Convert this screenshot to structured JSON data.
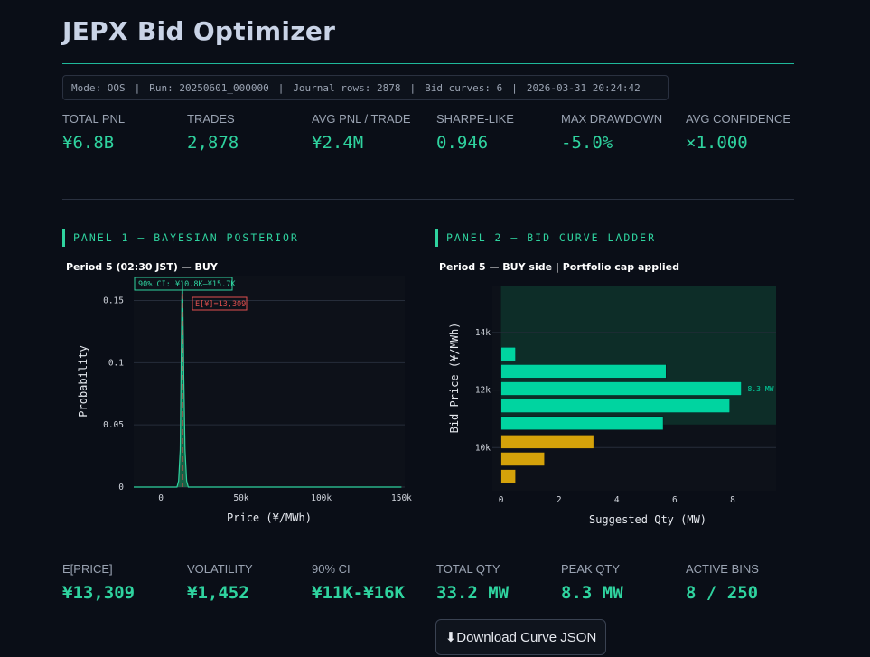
{
  "app": {
    "title": "JEPX Bid Optimizer"
  },
  "status": {
    "mode": "Mode: OOS",
    "run": "Run: 20250601_000000",
    "journal": "Journal rows: 2878",
    "curves": "Bid curves: 6",
    "timestamp": "2026-03-31 20:24:42",
    "separator": "|"
  },
  "summary_metrics": [
    {
      "label": "TOTAL PNL",
      "value": "¥6.8B"
    },
    {
      "label": "TRADES",
      "value": "2,878"
    },
    {
      "label": "AVG PNL / TRADE",
      "value": "¥2.4M"
    },
    {
      "label": "SHARPE-LIKE",
      "value": "0.946"
    },
    {
      "label": "MAX DRAWDOWN",
      "value": "-5.0%"
    },
    {
      "label": "AVG CONFIDENCE",
      "value": "×1.000"
    }
  ],
  "panel1": {
    "heading": "PANEL 1 — BAYESIAN POSTERIOR"
  },
  "panel2": {
    "heading": "PANEL 2 — BID CURVE LADDER"
  },
  "chart_data": [
    {
      "type": "area",
      "title": "Period 5 (02:30 JST) — BUY",
      "xlabel": "Price (¥/MWh)",
      "ylabel": "Probability",
      "xlim": [
        -17000,
        152000
      ],
      "ylim": [
        0,
        0.17
      ],
      "xticks": [
        0,
        50000,
        100000,
        150000
      ],
      "xtick_labels": [
        "0",
        "50k",
        "100k",
        "150k"
      ],
      "yticks": [
        0,
        0.05,
        0.1,
        0.15
      ],
      "ytick_labels": [
        "0",
        "0.05",
        "0.1",
        "0.15"
      ],
      "x": [
        -17000,
        10000,
        11000,
        12000,
        12500,
        13000,
        13309,
        13600,
        14200,
        15000,
        16000,
        17000,
        150000
      ],
      "y": [
        0,
        0,
        0.005,
        0.03,
        0.09,
        0.15,
        0.165,
        0.15,
        0.09,
        0.03,
        0.005,
        0,
        0
      ],
      "mean": 13309,
      "mean_label": "E[¥]=13,309",
      "ci": [
        10800,
        15700
      ],
      "ci_label": "90% CI: ¥10.8K–¥15.7K",
      "grid": true,
      "colors": {
        "fill": "#1a6e4e",
        "line": "#2fd39f",
        "mean": "#e04f4f",
        "ci": "#2fd39f"
      }
    },
    {
      "type": "bar",
      "orientation": "horizontal",
      "title": "Period 5 — BUY side | Portfolio cap applied",
      "xlabel": "Suggested Qty (MW)",
      "ylabel": "Bid Price (¥/MWh)",
      "xlim": [
        -0.3,
        9.5
      ],
      "ylim": [
        8500,
        15600
      ],
      "xticks": [
        0,
        2,
        4,
        6,
        8
      ],
      "yticks": [
        10000,
        12000,
        14000
      ],
      "ytick_labels": [
        "10k",
        "12k",
        "14k"
      ],
      "bars": [
        {
          "price": 9000,
          "qty": 0.5,
          "side": "below"
        },
        {
          "price": 9600,
          "qty": 1.5,
          "side": "below"
        },
        {
          "price": 10200,
          "qty": 3.2,
          "side": "below"
        },
        {
          "price": 10850,
          "qty": 5.6,
          "side": "above"
        },
        {
          "price": 11450,
          "qty": 7.9,
          "side": "above"
        },
        {
          "price": 12050,
          "qty": 8.3,
          "side": "above"
        },
        {
          "price": 12650,
          "qty": 5.7,
          "side": "above"
        },
        {
          "price": 13250,
          "qty": 0.5,
          "side": "above"
        }
      ],
      "peak_label": "8.3 MW",
      "ci_band": [
        10800,
        15700
      ],
      "grid": true,
      "colors": {
        "above": "#00d4a0",
        "below": "#d4a20a",
        "band": "#0d2d28"
      }
    }
  ],
  "detail_metrics": [
    {
      "label": "E[PRICE]",
      "value": "¥13,309"
    },
    {
      "label": "VOLATILITY",
      "value": "¥1,452"
    },
    {
      "label": "90% CI",
      "value": "¥11K-¥16K"
    },
    {
      "label": "TOTAL QTY",
      "value": "33.2 MW"
    },
    {
      "label": "PEAK QTY",
      "value": "8.3 MW"
    },
    {
      "label": "ACTIVE BINS",
      "value": "8 / 250"
    }
  ],
  "download": {
    "icon": "⬇",
    "label": "Download Curve JSON"
  }
}
